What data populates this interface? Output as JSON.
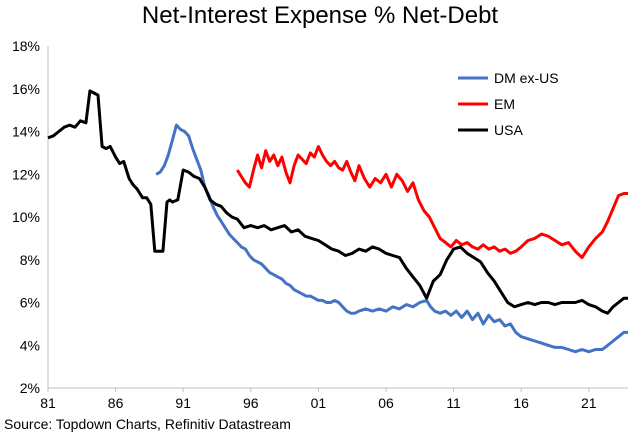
{
  "chart_data": {
    "type": "line",
    "title": "Net-Interest Expense % Net-Debt",
    "xlabel": "",
    "ylabel": "",
    "xlim": [
      1981,
      2023.9
    ],
    "ylim": [
      2,
      18
    ],
    "y_ticks": [
      2,
      4,
      6,
      8,
      10,
      12,
      14,
      16,
      18
    ],
    "y_tick_labels": [
      "2%",
      "4%",
      "6%",
      "8%",
      "10%",
      "12%",
      "14%",
      "16%",
      "18%"
    ],
    "x_ticks": [
      1981,
      1986,
      1991,
      1996,
      2001,
      2006,
      2011,
      2016,
      2021
    ],
    "x_tick_labels": [
      "81",
      "86",
      "91",
      "96",
      "01",
      "06",
      "11",
      "16",
      "21"
    ],
    "grid": false,
    "legend_position": "top-right",
    "series": [
      {
        "name": "DM ex-US",
        "color": "#4472c4",
        "x": [
          1989.0,
          1989.3,
          1989.6,
          1989.9,
          1990.2,
          1990.5,
          1990.8,
          1991.1,
          1991.4,
          1991.7,
          1992.0,
          1992.3,
          1992.6,
          1992.9,
          1993.2,
          1993.5,
          1993.8,
          1994.1,
          1994.4,
          1994.7,
          1995.0,
          1995.3,
          1995.6,
          1995.9,
          1996.2,
          1996.5,
          1996.8,
          1997.1,
          1997.4,
          1997.7,
          1998.0,
          1998.3,
          1998.6,
          1998.9,
          1999.2,
          1999.5,
          1999.8,
          2000.1,
          2000.4,
          2000.7,
          2001.0,
          2001.3,
          2001.6,
          2001.9,
          2002.2,
          2002.5,
          2002.8,
          2003.1,
          2003.4,
          2003.7,
          2004.0,
          2004.5,
          2005.0,
          2005.5,
          2006.0,
          2006.5,
          2007.0,
          2007.5,
          2008.0,
          2008.5,
          2009.0,
          2009.3,
          2009.6,
          2010.0,
          2010.4,
          2010.8,
          2011.2,
          2011.6,
          2012.0,
          2012.4,
          2012.8,
          2013.2,
          2013.6,
          2014.0,
          2014.4,
          2014.8,
          2015.2,
          2015.6,
          2016.0,
          2016.5,
          2017.0,
          2017.5,
          2018.0,
          2018.5,
          2019.0,
          2019.5,
          2020.0,
          2020.5,
          2021.0,
          2021.5,
          2022.0,
          2022.4,
          2022.8,
          2023.2,
          2023.6,
          2023.9
        ],
        "values": [
          12.0,
          12.1,
          12.4,
          12.9,
          13.6,
          14.3,
          14.1,
          14.0,
          13.8,
          13.2,
          12.7,
          12.2,
          11.4,
          11.0,
          10.5,
          10.1,
          9.8,
          9.5,
          9.2,
          9.0,
          8.8,
          8.6,
          8.5,
          8.2,
          8.0,
          7.9,
          7.8,
          7.6,
          7.4,
          7.3,
          7.2,
          7.1,
          6.9,
          6.8,
          6.6,
          6.5,
          6.4,
          6.3,
          6.3,
          6.2,
          6.1,
          6.1,
          6.0,
          6.0,
          6.1,
          6.0,
          5.8,
          5.6,
          5.5,
          5.5,
          5.6,
          5.7,
          5.6,
          5.7,
          5.6,
          5.8,
          5.7,
          5.9,
          5.8,
          6.0,
          6.1,
          5.8,
          5.6,
          5.5,
          5.6,
          5.4,
          5.6,
          5.3,
          5.6,
          5.2,
          5.5,
          5.0,
          5.4,
          5.1,
          5.2,
          4.9,
          5.0,
          4.6,
          4.4,
          4.3,
          4.2,
          4.1,
          4.0,
          3.9,
          3.9,
          3.8,
          3.7,
          3.8,
          3.7,
          3.8,
          3.8,
          4.0,
          4.2,
          4.4,
          4.6,
          4.6
        ]
      },
      {
        "name": "EM",
        "color": "#ff0000",
        "x": [
          1995.0,
          1995.3,
          1995.6,
          1995.9,
          1996.2,
          1996.5,
          1996.8,
          1997.1,
          1997.4,
          1997.7,
          1998.0,
          1998.3,
          1998.6,
          1998.9,
          1999.2,
          1999.5,
          1999.8,
          2000.1,
          2000.4,
          2000.7,
          2001.0,
          2001.3,
          2001.6,
          2001.9,
          2002.2,
          2002.5,
          2002.8,
          2003.1,
          2003.4,
          2003.7,
          2004.0,
          2004.4,
          2004.8,
          2005.2,
          2005.6,
          2006.0,
          2006.4,
          2006.8,
          2007.2,
          2007.6,
          2008.0,
          2008.4,
          2008.8,
          2009.2,
          2009.6,
          2010.0,
          2010.4,
          2010.8,
          2011.2,
          2011.6,
          2012.0,
          2012.4,
          2012.8,
          2013.2,
          2013.6,
          2014.0,
          2014.4,
          2014.8,
          2015.2,
          2015.6,
          2016.0,
          2016.5,
          2017.0,
          2017.5,
          2018.0,
          2018.5,
          2019.0,
          2019.5,
          2020.0,
          2020.5,
          2021.0,
          2021.5,
          2022.0,
          2022.4,
          2022.8,
          2023.2,
          2023.6,
          2023.9
        ],
        "values": [
          12.2,
          11.9,
          11.6,
          11.4,
          12.2,
          12.9,
          12.3,
          13.1,
          12.6,
          12.9,
          12.4,
          12.8,
          12.1,
          11.6,
          12.4,
          12.9,
          12.7,
          12.5,
          13.0,
          12.8,
          13.3,
          12.9,
          12.6,
          12.4,
          12.6,
          12.3,
          12.2,
          12.6,
          12.1,
          11.7,
          12.4,
          11.8,
          11.4,
          11.8,
          11.6,
          12.0,
          11.4,
          12.0,
          11.7,
          11.2,
          11.6,
          10.8,
          10.3,
          10.0,
          9.5,
          9.0,
          8.8,
          8.6,
          8.9,
          8.7,
          8.8,
          8.6,
          8.5,
          8.7,
          8.5,
          8.6,
          8.4,
          8.5,
          8.3,
          8.4,
          8.6,
          8.9,
          9.0,
          9.2,
          9.1,
          8.9,
          8.7,
          8.8,
          8.4,
          8.1,
          8.6,
          9.0,
          9.3,
          9.8,
          10.4,
          11.0,
          11.1,
          11.1
        ]
      },
      {
        "name": "USA",
        "color": "#000000",
        "x": [
          1981.0,
          1981.4,
          1981.8,
          1982.2,
          1982.6,
          1983.0,
          1983.4,
          1983.8,
          1984.1,
          1984.4,
          1984.7,
          1985.0,
          1985.3,
          1985.6,
          1986.0,
          1986.3,
          1986.6,
          1987.0,
          1987.3,
          1987.6,
          1988.0,
          1988.3,
          1988.6,
          1988.9,
          1989.2,
          1989.5,
          1989.8,
          1990.0,
          1990.2,
          1990.6,
          1991.0,
          1991.4,
          1991.8,
          1992.2,
          1992.6,
          1993.0,
          1993.4,
          1993.8,
          1994.2,
          1994.6,
          1995.0,
          1995.5,
          1996.0,
          1996.5,
          1997.0,
          1997.5,
          1998.0,
          1998.5,
          1999.0,
          1999.5,
          2000.0,
          2000.5,
          2001.0,
          2001.5,
          2002.0,
          2002.5,
          2003.0,
          2003.5,
          2004.0,
          2004.5,
          2005.0,
          2005.5,
          2006.0,
          2006.5,
          2007.0,
          2007.5,
          2008.0,
          2008.5,
          2009.0,
          2009.5,
          2010.0,
          2010.5,
          2011.0,
          2011.5,
          2012.0,
          2012.5,
          2013.0,
          2013.5,
          2014.0,
          2014.5,
          2015.0,
          2015.5,
          2016.0,
          2016.5,
          2017.0,
          2017.5,
          2018.0,
          2018.5,
          2019.0,
          2019.5,
          2020.0,
          2020.5,
          2021.0,
          2021.5,
          2022.0,
          2022.4,
          2022.8,
          2023.2,
          2023.6,
          2023.9
        ],
        "values": [
          13.7,
          13.8,
          14.0,
          14.2,
          14.3,
          14.2,
          14.5,
          14.4,
          15.9,
          15.8,
          15.7,
          13.3,
          13.2,
          13.3,
          12.8,
          12.5,
          12.6,
          11.8,
          11.5,
          11.3,
          10.9,
          10.9,
          10.6,
          8.4,
          8.4,
          8.4,
          10.7,
          10.8,
          10.7,
          10.8,
          12.2,
          12.1,
          11.9,
          11.8,
          11.4,
          10.8,
          10.6,
          10.5,
          10.2,
          10.0,
          9.9,
          9.5,
          9.6,
          9.5,
          9.6,
          9.4,
          9.5,
          9.6,
          9.3,
          9.4,
          9.1,
          9.0,
          8.9,
          8.7,
          8.5,
          8.4,
          8.2,
          8.3,
          8.5,
          8.4,
          8.6,
          8.5,
          8.3,
          8.2,
          8.1,
          7.6,
          7.2,
          6.8,
          6.2,
          7.0,
          7.3,
          8.0,
          8.5,
          8.6,
          8.3,
          8.1,
          7.9,
          7.4,
          7.0,
          6.5,
          6.0,
          5.8,
          5.9,
          6.0,
          5.9,
          6.0,
          6.0,
          5.9,
          6.0,
          6.0,
          6.0,
          6.1,
          5.9,
          5.8,
          5.6,
          5.5,
          5.8,
          6.0,
          6.2,
          6.2
        ]
      }
    ]
  },
  "source": "Source: Topdown Charts, Refinitiv Datastream"
}
